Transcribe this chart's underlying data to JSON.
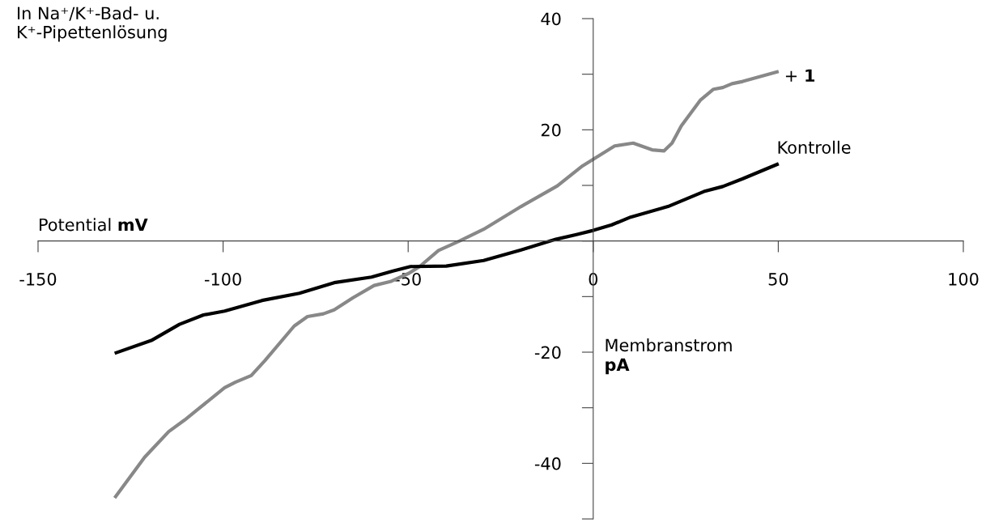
{
  "chart_data": {
    "type": "line",
    "title": "In Na⁺/K⁺-Bad- u.\nK⁺-Pipettenlösung",
    "xlabel": "Potential mV",
    "ylabel": "Membranstrom pA",
    "xlim": [
      -150,
      100
    ],
    "ylim": [
      -50,
      40
    ],
    "xticks": [
      -150,
      -100,
      -50,
      {
        "value": 0,
        "label": "0"
      },
      50,
      100
    ],
    "yticks": [
      40,
      {
        "value": 30,
        "label": null
      },
      20,
      {
        "value": 10,
        "label": null
      },
      {
        "value": 0,
        "label": null
      },
      {
        "value": -10,
        "label": null
      },
      -20,
      {
        "value": -30,
        "label": null
      },
      -40,
      {
        "value": -50,
        "label": null
      }
    ],
    "grid": false,
    "legend": false,
    "marker": "none",
    "line_style": "solid",
    "series": [
      {
        "name": "+ 1",
        "color": "#888888",
        "x": [
          -129.3,
          -121.2,
          -114.7,
          -110.4,
          -99.6,
          -96.7,
          -92.4,
          -88.7,
          -80.8,
          -77.2,
          -72.9,
          -70,
          -64.9,
          -59.2,
          -54.8,
          -49.8,
          -46.9,
          -41.8,
          -36.1,
          -29.6,
          -19.5,
          -9.7,
          -2.9,
          0,
          5.8,
          10.8,
          15.9,
          19.1,
          21.3,
          23.8,
          28.9,
          32.5,
          35,
          37.5,
          40.4,
          50.1
        ],
        "values": [
          -46.2,
          -38.9,
          -34.3,
          -32.2,
          -26.4,
          -25.4,
          -24.2,
          -21.5,
          -15.3,
          -13.6,
          -13.1,
          -12.4,
          -10.2,
          -8.0,
          -7.3,
          -5.8,
          -4.6,
          -1.7,
          0,
          2.1,
          6.2,
          9.9,
          13.5,
          14.7,
          17.1,
          17.6,
          16.4,
          16.2,
          17.6,
          20.7,
          25.3,
          27.3,
          27.6,
          28.3,
          28.7,
          30.5
        ]
      },
      {
        "name": "Kontrolle",
        "color": "#000000",
        "x": [
          -129.3,
          -119.4,
          -111.8,
          -105.3,
          -99.6,
          -89.5,
          -79.4,
          -70,
          -59.9,
          -54.1,
          -49.4,
          -39.7,
          -29.6,
          -19.5,
          -10.1,
          -4.3,
          0,
          5,
          10.1,
          20.2,
          29.9,
          35,
          40.4,
          50.1
        ],
        "values": [
          -20.2,
          -17.9,
          -15.0,
          -13.3,
          -12.6,
          -10.7,
          -9.4,
          -7.5,
          -6.5,
          -5.4,
          -4.6,
          -4.5,
          -3.5,
          -1.6,
          0.3,
          1.2,
          1.9,
          2.9,
          4.3,
          6.2,
          8.9,
          9.8,
          11.2,
          13.9
        ]
      }
    ]
  }
}
